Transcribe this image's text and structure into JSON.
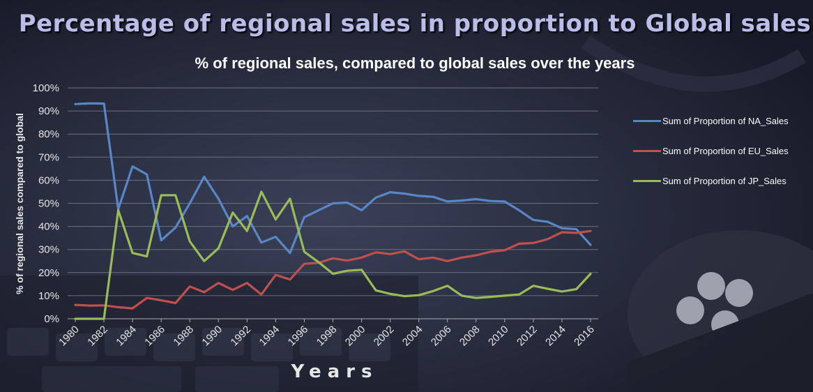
{
  "chart_data": {
    "type": "line",
    "title": "Percentage of regional sales in proportion to Global sales",
    "subtitle": "% of regional sales, compared to global sales over the years",
    "xlabel": "Years",
    "ylabel": "% of regional sales compared to global",
    "ylim": [
      0,
      100
    ],
    "yticks": [
      "0%",
      "10%",
      "20%",
      "30%",
      "40%",
      "50%",
      "60%",
      "70%",
      "80%",
      "90%",
      "100%"
    ],
    "x": [
      1980,
      1981,
      1982,
      1983,
      1984,
      1985,
      1986,
      1987,
      1988,
      1989,
      1990,
      1991,
      1992,
      1993,
      1994,
      1995,
      1996,
      1997,
      1998,
      1999,
      2000,
      2001,
      2002,
      2003,
      2004,
      2005,
      2006,
      2007,
      2008,
      2009,
      2010,
      2011,
      2012,
      2013,
      2014,
      2015,
      2016
    ],
    "xtick_labels": [
      "1980",
      "1982",
      "1984",
      "1986",
      "1988",
      "1990",
      "1992",
      "1994",
      "1996",
      "1998",
      "2000",
      "2002",
      "2004",
      "2006",
      "2008",
      "2010",
      "2012",
      "2014",
      "2016"
    ],
    "grid": true,
    "legend_position": "right",
    "series": [
      {
        "name": "Sum of Proportion of NA_Sales",
        "color": "#5b86c5",
        "values": [
          93,
          93.3,
          93.2,
          47.5,
          66,
          62.5,
          34,
          39.5,
          50,
          61.5,
          52,
          40,
          44.5,
          33,
          35.5,
          28.5,
          44,
          47,
          50,
          50.3,
          47,
          52.5,
          54.8,
          54.2,
          53.2,
          52.8,
          50.8,
          51.2,
          51.8,
          51,
          50.8,
          47,
          42.8,
          42,
          39.2,
          38.8,
          32
        ]
      },
      {
        "name": "Sum of Proportion of EU_Sales",
        "color": "#c0504d",
        "values": [
          6,
          5.7,
          5.8,
          5,
          4.5,
          9,
          8,
          6.8,
          14,
          11.5,
          15.5,
          12.5,
          15.5,
          10.5,
          19,
          17,
          23.8,
          24.2,
          26.2,
          25.2,
          26.5,
          28.8,
          28,
          29.2,
          25.8,
          26.5,
          25,
          26.5,
          27.5,
          29,
          29.7,
          32.5,
          32.8,
          34.5,
          37.5,
          37.2,
          38
        ]
      },
      {
        "name": "Sum of Proportion of JP_Sales",
        "color": "#9bbb59",
        "values": [
          0,
          0,
          0,
          47,
          28.5,
          27,
          53.5,
          53.5,
          33.5,
          25,
          30.5,
          46,
          38,
          55,
          43,
          52,
          29,
          24.5,
          19.5,
          20.8,
          21.2,
          12.3,
          10.8,
          9.8,
          10.2,
          12,
          14.3,
          10,
          9,
          9.5,
          10,
          10.5,
          14.3,
          13,
          11.8,
          12.8,
          19.5
        ]
      }
    ]
  }
}
